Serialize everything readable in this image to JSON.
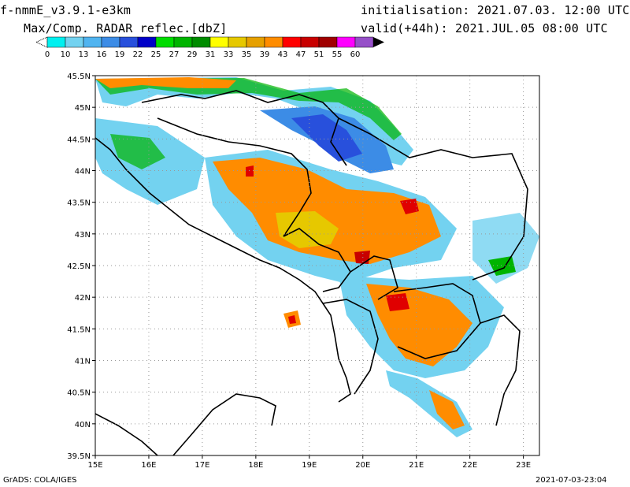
{
  "header": {
    "model": "f-nmmE_v3.9.1-e3km",
    "variable": "Max/Comp. RADAR reflec.[dbZ]",
    "init": "initialisation: 2021.07.03. 12:00 UTC",
    "valid": "valid(+44h): 2021.JUL.05 08:00 UTC"
  },
  "colorbar": {
    "labels": [
      "0",
      "10",
      "13",
      "16",
      "19",
      "22",
      "25",
      "27",
      "29",
      "31",
      "33",
      "35",
      "39",
      "43",
      "47",
      "51",
      "55",
      "60"
    ],
    "colors": [
      "#00f0f0",
      "#73d2f0",
      "#50b4f0",
      "#3c8ce6",
      "#2850dc",
      "#0000c8",
      "#00dc00",
      "#00b400",
      "#008c00",
      "#ffff00",
      "#e6c800",
      "#e6a000",
      "#ff8c00",
      "#ff0000",
      "#c80000",
      "#a00000",
      "#ff00ff",
      "#9650c8",
      "#000000"
    ]
  },
  "axes": {
    "lon_labels": [
      "15E",
      "16E",
      "17E",
      "18E",
      "19E",
      "20E",
      "21E",
      "22E",
      "23E"
    ],
    "lat_labels": [
      "45.5N",
      "45N",
      "44.5N",
      "44N",
      "43.5N",
      "43N",
      "42.5N",
      "42N",
      "41.5N",
      "41N",
      "40.5N",
      "40N",
      "39.5N"
    ]
  },
  "footer": {
    "left": "GrADS: COLA/IGES",
    "right": "2021-07-03-23:04"
  }
}
